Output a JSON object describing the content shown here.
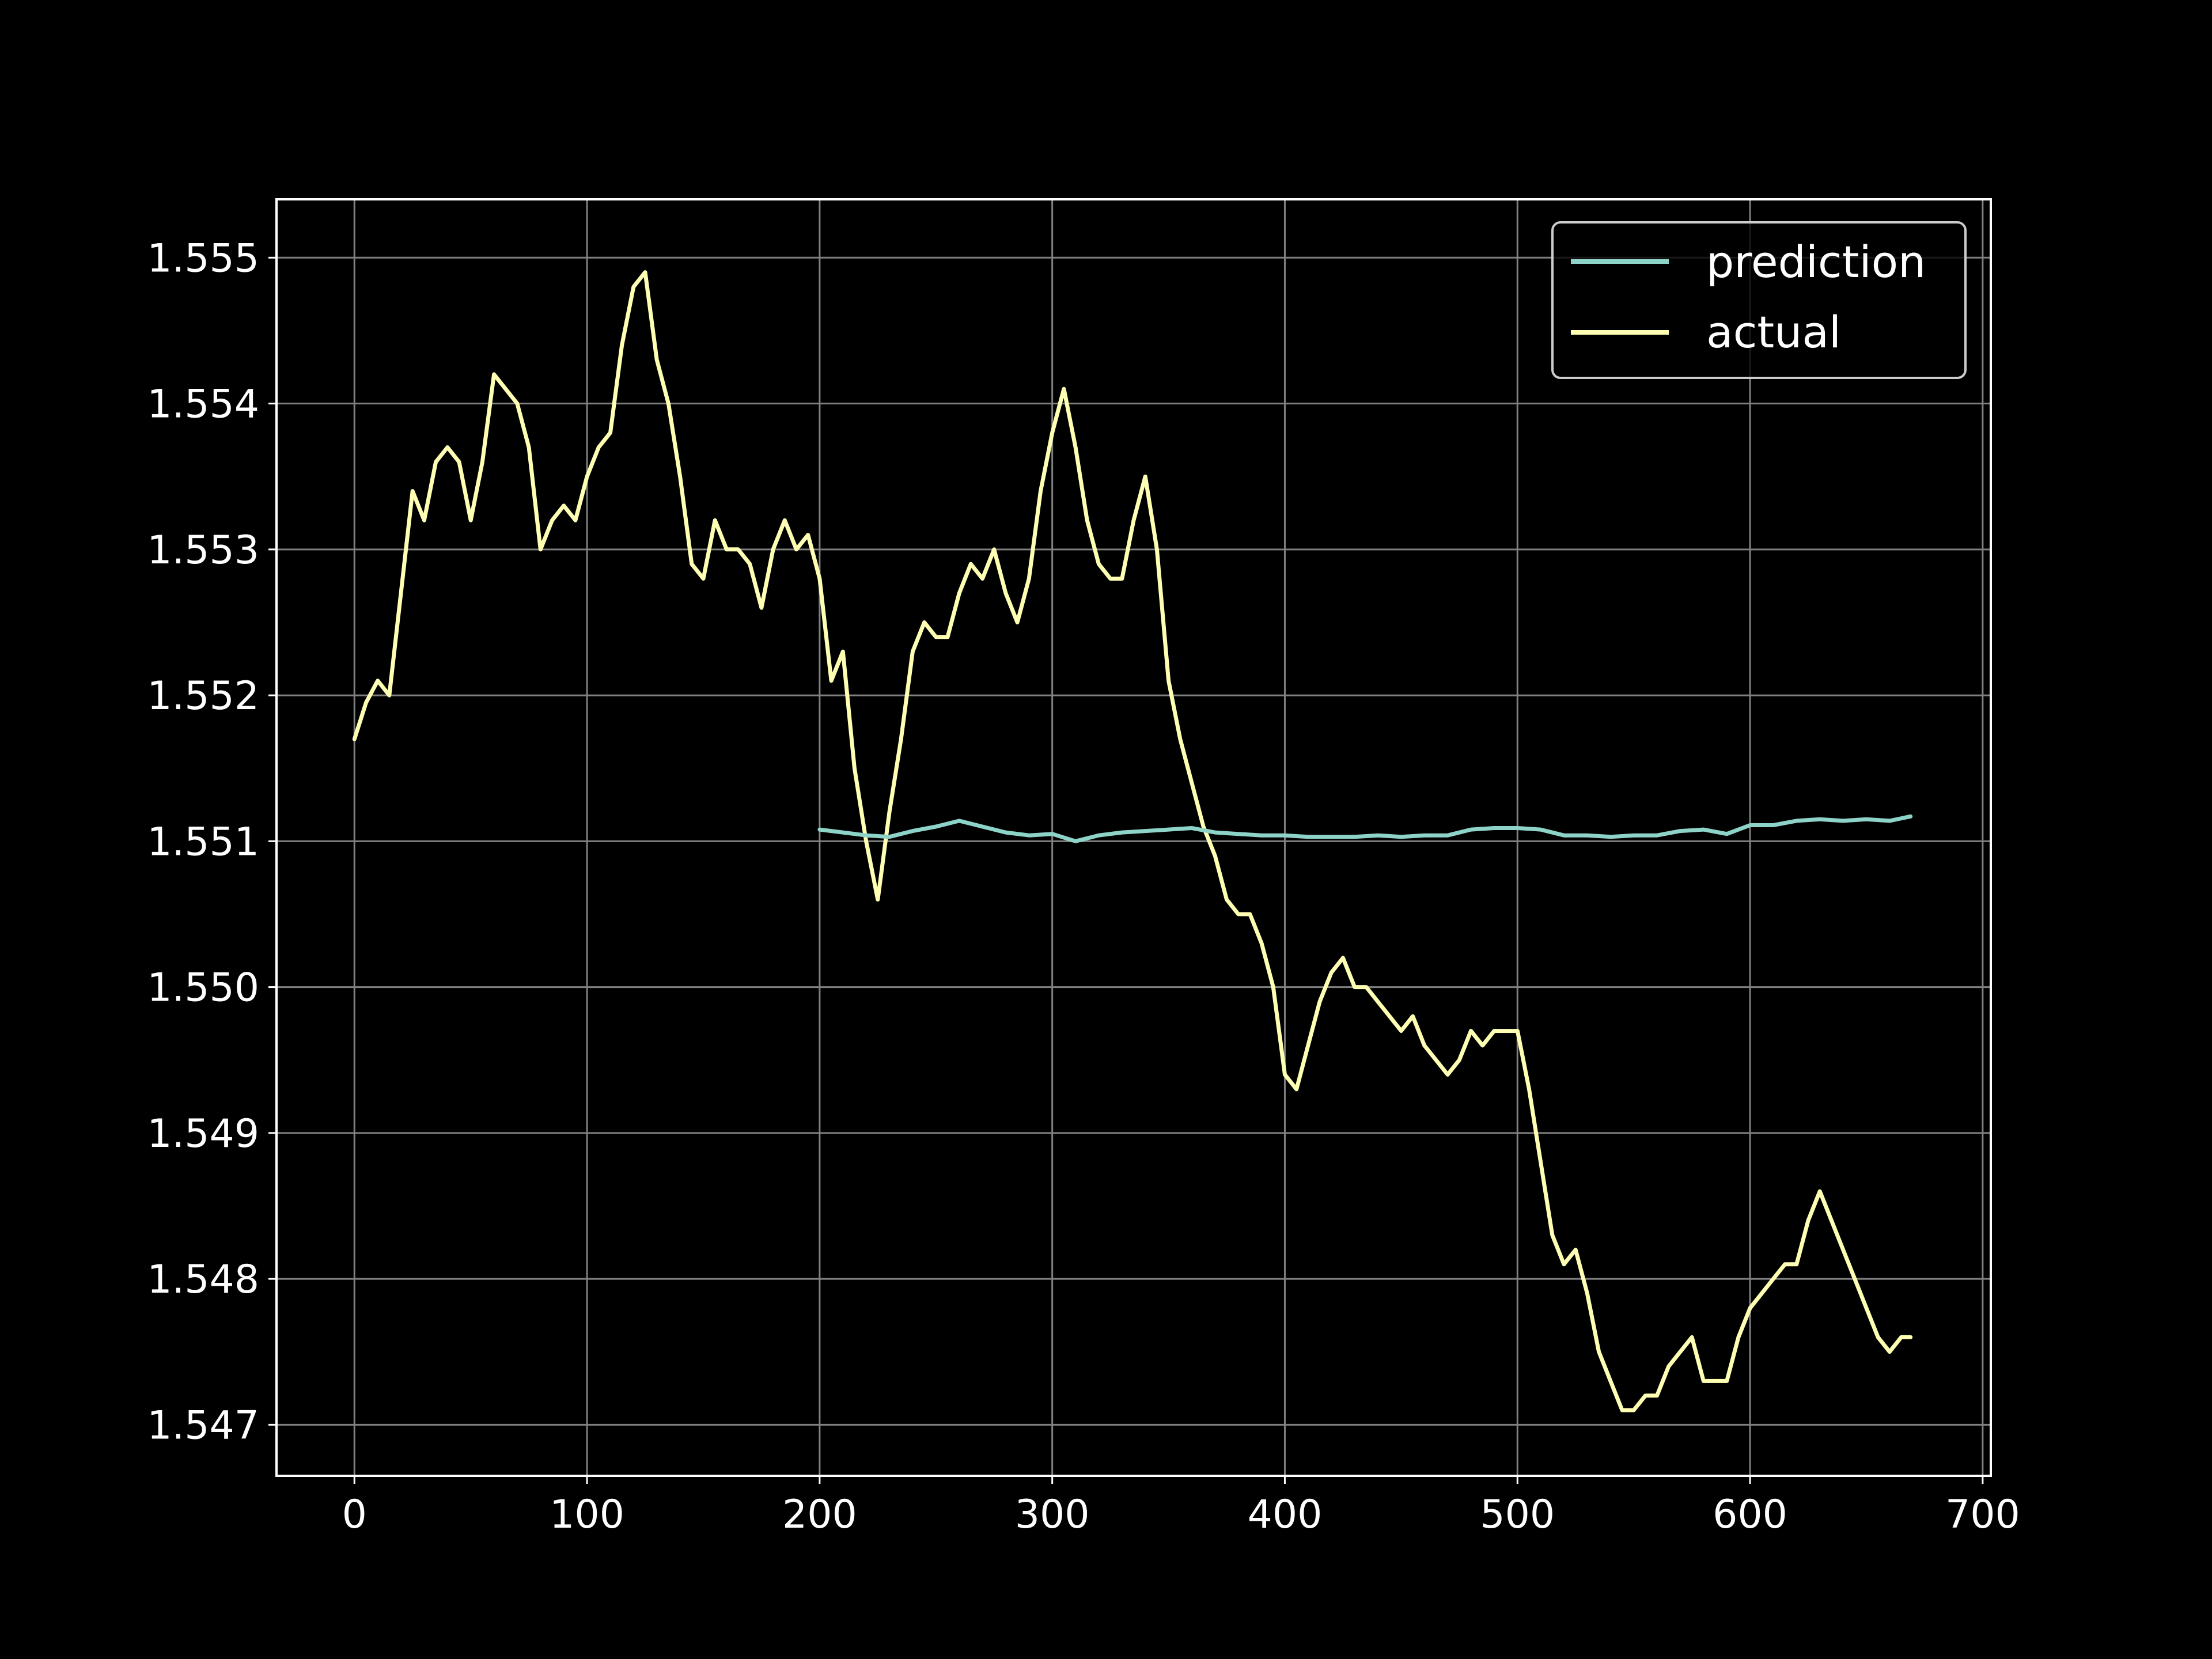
{
  "chart_data": {
    "type": "line",
    "title": "",
    "xlabel": "",
    "ylabel": "",
    "xlim": [
      -33.5,
      703.5
    ],
    "ylim": [
      1.54665,
      1.5554
    ],
    "xticks": [
      0,
      100,
      200,
      300,
      400,
      500,
      600,
      700
    ],
    "xtick_labels": [
      "0",
      "100",
      "200",
      "300",
      "400",
      "500",
      "600",
      "700"
    ],
    "yticks": [
      1.547,
      1.548,
      1.549,
      1.55,
      1.551,
      1.552,
      1.553,
      1.554,
      1.555
    ],
    "ytick_labels": [
      "1.547",
      "1.548",
      "1.549",
      "1.550",
      "1.551",
      "1.552",
      "1.553",
      "1.554",
      "1.555"
    ],
    "grid": true,
    "legend_position": "top-right",
    "colors": {
      "background": "#000000",
      "axes": "#ffffff",
      "grid": "#808080"
    },
    "series": [
      {
        "name": "prediction",
        "color": "#8dd3c7",
        "x": [
          200,
          210,
          220,
          230,
          240,
          250,
          260,
          270,
          280,
          290,
          300,
          310,
          320,
          330,
          340,
          350,
          360,
          370,
          380,
          390,
          400,
          410,
          420,
          430,
          440,
          450,
          460,
          470,
          480,
          490,
          500,
          510,
          520,
          530,
          540,
          550,
          560,
          570,
          580,
          590,
          600,
          610,
          620,
          630,
          640,
          650,
          660,
          669
        ],
        "y": [
          1.55108,
          1.55106,
          1.55104,
          1.55103,
          1.55107,
          1.5511,
          1.55114,
          1.5511,
          1.55106,
          1.55104,
          1.55105,
          1.551,
          1.55104,
          1.55106,
          1.55107,
          1.55108,
          1.55109,
          1.55106,
          1.55105,
          1.55104,
          1.55104,
          1.55103,
          1.55103,
          1.55103,
          1.55104,
          1.55103,
          1.55104,
          1.55104,
          1.55108,
          1.55109,
          1.55109,
          1.55108,
          1.55104,
          1.55104,
          1.55103,
          1.55104,
          1.55104,
          1.55107,
          1.55108,
          1.55105,
          1.55111,
          1.55111,
          1.55114,
          1.55115,
          1.55114,
          1.55115,
          1.55114,
          1.55117
        ]
      },
      {
        "name": "actual",
        "color": "#ffffb3",
        "x": [
          0,
          5,
          10,
          15,
          20,
          25,
          30,
          35,
          40,
          45,
          50,
          55,
          60,
          65,
          70,
          75,
          80,
          85,
          90,
          95,
          100,
          105,
          110,
          115,
          120,
          125,
          130,
          135,
          140,
          145,
          150,
          155,
          160,
          165,
          170,
          175,
          180,
          185,
          190,
          195,
          200,
          205,
          210,
          215,
          220,
          225,
          230,
          235,
          240,
          245,
          250,
          255,
          260,
          265,
          270,
          275,
          280,
          285,
          290,
          295,
          300,
          305,
          310,
          315,
          320,
          325,
          330,
          335,
          340,
          345,
          350,
          355,
          360,
          365,
          370,
          375,
          380,
          385,
          390,
          395,
          400,
          405,
          410,
          415,
          420,
          425,
          430,
          435,
          440,
          445,
          450,
          455,
          460,
          465,
          470,
          475,
          480,
          485,
          490,
          495,
          500,
          505,
          510,
          515,
          520,
          525,
          530,
          535,
          540,
          545,
          550,
          555,
          560,
          565,
          570,
          575,
          580,
          585,
          590,
          595,
          600,
          605,
          610,
          615,
          620,
          625,
          630,
          635,
          640,
          645,
          650,
          655,
          660,
          665,
          669
        ],
        "y": [
          1.5517,
          1.55195,
          1.5521,
          1.552,
          1.5527,
          1.5534,
          1.5532,
          1.5536,
          1.5537,
          1.5536,
          1.5532,
          1.5536,
          1.5542,
          1.5541,
          1.554,
          1.5537,
          1.553,
          1.5532,
          1.5533,
          1.5532,
          1.5535,
          1.5537,
          1.5538,
          1.5544,
          1.5548,
          1.5549,
          1.5543,
          1.554,
          1.5535,
          1.5529,
          1.5528,
          1.5532,
          1.553,
          1.553,
          1.5529,
          1.5526,
          1.553,
          1.5532,
          1.553,
          1.5531,
          1.5528,
          1.5521,
          1.5523,
          1.5515,
          1.551,
          1.5506,
          1.5512,
          1.5517,
          1.5523,
          1.5525,
          1.5524,
          1.5524,
          1.5527,
          1.5529,
          1.5528,
          1.553,
          1.5527,
          1.5525,
          1.5528,
          1.5534,
          1.5538,
          1.5541,
          1.5537,
          1.5532,
          1.5529,
          1.5528,
          1.5528,
          1.5532,
          1.5535,
          1.553,
          1.5521,
          1.5517,
          1.5514,
          1.5511,
          1.5509,
          1.5506,
          1.5505,
          1.5505,
          1.5503,
          1.55,
          1.5494,
          1.5493,
          1.5496,
          1.5499,
          1.5501,
          1.5502,
          1.55,
          1.55,
          1.5499,
          1.5498,
          1.5497,
          1.5498,
          1.5496,
          1.5495,
          1.5494,
          1.5495,
          1.5497,
          1.5496,
          1.5497,
          1.5497,
          1.5497,
          1.5493,
          1.5488,
          1.5483,
          1.5481,
          1.5482,
          1.5479,
          1.5475,
          1.5473,
          1.5471,
          1.5471,
          1.5472,
          1.5472,
          1.5474,
          1.5475,
          1.5476,
          1.5473,
          1.5473,
          1.5473,
          1.5476,
          1.5478,
          1.5479,
          1.548,
          1.5481,
          1.5481,
          1.5484,
          1.5486,
          1.5484,
          1.5482,
          1.548,
          1.5478,
          1.5476,
          1.5475,
          1.5476,
          1.5476
        ]
      }
    ]
  }
}
